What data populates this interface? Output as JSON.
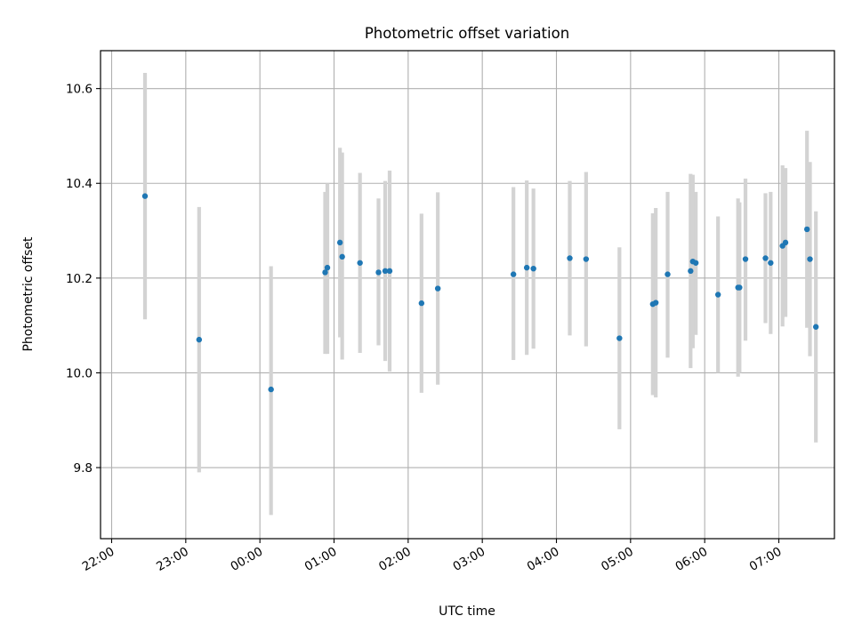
{
  "chart_data": {
    "type": "scatter",
    "title": "Photometric offset variation",
    "xlabel": "UTC time",
    "ylabel": "Photometric offset",
    "grid": true,
    "x_unit": "hours",
    "xlim": [
      21.85,
      31.75
    ],
    "ylim": [
      9.65,
      10.68
    ],
    "x_ticks": [
      {
        "value": 22,
        "label": "22:00"
      },
      {
        "value": 23,
        "label": "23:00"
      },
      {
        "value": 24,
        "label": "00:00"
      },
      {
        "value": 25,
        "label": "01:00"
      },
      {
        "value": 26,
        "label": "02:00"
      },
      {
        "value": 27,
        "label": "03:00"
      },
      {
        "value": 28,
        "label": "04:00"
      },
      {
        "value": 29,
        "label": "05:00"
      },
      {
        "value": 30,
        "label": "06:00"
      },
      {
        "value": 31,
        "label": "07:00"
      }
    ],
    "y_ticks": [
      {
        "value": 9.8,
        "label": "9.8"
      },
      {
        "value": 10.0,
        "label": "10.0"
      },
      {
        "value": 10.2,
        "label": "10.2"
      },
      {
        "value": 10.4,
        "label": "10.4"
      },
      {
        "value": 10.6,
        "label": "10.6"
      }
    ],
    "marker_color": "#1f77b4",
    "errorbar_color": "#d3d3d3",
    "points": [
      {
        "x": 22.45,
        "y": 10.373,
        "low": 10.113,
        "high": 10.633
      },
      {
        "x": 23.18,
        "y": 10.07,
        "low": 9.79,
        "high": 10.35
      },
      {
        "x": 24.15,
        "y": 9.965,
        "low": 9.7,
        "high": 10.225
      },
      {
        "x": 24.88,
        "y": 10.212,
        "low": 10.04,
        "high": 10.382
      },
      {
        "x": 24.91,
        "y": 10.222,
        "low": 10.04,
        "high": 10.4
      },
      {
        "x": 25.08,
        "y": 10.275,
        "low": 10.075,
        "high": 10.475
      },
      {
        "x": 25.11,
        "y": 10.245,
        "low": 10.028,
        "high": 10.465
      },
      {
        "x": 25.35,
        "y": 10.232,
        "low": 10.042,
        "high": 10.422
      },
      {
        "x": 25.6,
        "y": 10.212,
        "low": 10.058,
        "high": 10.368
      },
      {
        "x": 25.69,
        "y": 10.215,
        "low": 10.025,
        "high": 10.405
      },
      {
        "x": 25.75,
        "y": 10.215,
        "low": 10.003,
        "high": 10.427
      },
      {
        "x": 26.18,
        "y": 10.147,
        "low": 9.958,
        "high": 10.336
      },
      {
        "x": 26.4,
        "y": 10.178,
        "low": 9.975,
        "high": 10.381
      },
      {
        "x": 27.42,
        "y": 10.208,
        "low": 10.027,
        "high": 10.392
      },
      {
        "x": 27.6,
        "y": 10.222,
        "low": 10.038,
        "high": 10.406
      },
      {
        "x": 27.69,
        "y": 10.22,
        "low": 10.051,
        "high": 10.389
      },
      {
        "x": 28.18,
        "y": 10.242,
        "low": 10.079,
        "high": 10.405
      },
      {
        "x": 28.4,
        "y": 10.24,
        "low": 10.056,
        "high": 10.424
      },
      {
        "x": 28.85,
        "y": 10.073,
        "low": 9.881,
        "high": 10.265
      },
      {
        "x": 29.3,
        "y": 10.145,
        "low": 9.953,
        "high": 10.337
      },
      {
        "x": 29.34,
        "y": 10.148,
        "low": 9.948,
        "high": 10.348
      },
      {
        "x": 29.5,
        "y": 10.208,
        "low": 10.032,
        "high": 10.382
      },
      {
        "x": 29.81,
        "y": 10.215,
        "low": 10.01,
        "high": 10.42
      },
      {
        "x": 29.84,
        "y": 10.235,
        "low": 10.052,
        "high": 10.418
      },
      {
        "x": 29.88,
        "y": 10.232,
        "low": 10.08,
        "high": 10.382
      },
      {
        "x": 30.18,
        "y": 10.165,
        "low": 10.0,
        "high": 10.33
      },
      {
        "x": 30.45,
        "y": 10.18,
        "low": 9.992,
        "high": 10.368
      },
      {
        "x": 30.47,
        "y": 10.18,
        "low": 10.0,
        "high": 10.36
      },
      {
        "x": 30.55,
        "y": 10.24,
        "low": 10.068,
        "high": 10.41
      },
      {
        "x": 30.82,
        "y": 10.242,
        "low": 10.105,
        "high": 10.379
      },
      {
        "x": 30.89,
        "y": 10.232,
        "low": 10.082,
        "high": 10.382
      },
      {
        "x": 31.05,
        "y": 10.268,
        "low": 10.098,
        "high": 10.438
      },
      {
        "x": 31.09,
        "y": 10.275,
        "low": 10.118,
        "high": 10.432
      },
      {
        "x": 31.38,
        "y": 10.303,
        "low": 10.095,
        "high": 10.511
      },
      {
        "x": 31.42,
        "y": 10.24,
        "low": 10.035,
        "high": 10.445
      },
      {
        "x": 31.5,
        "y": 10.097,
        "low": 9.853,
        "high": 10.341
      }
    ]
  }
}
